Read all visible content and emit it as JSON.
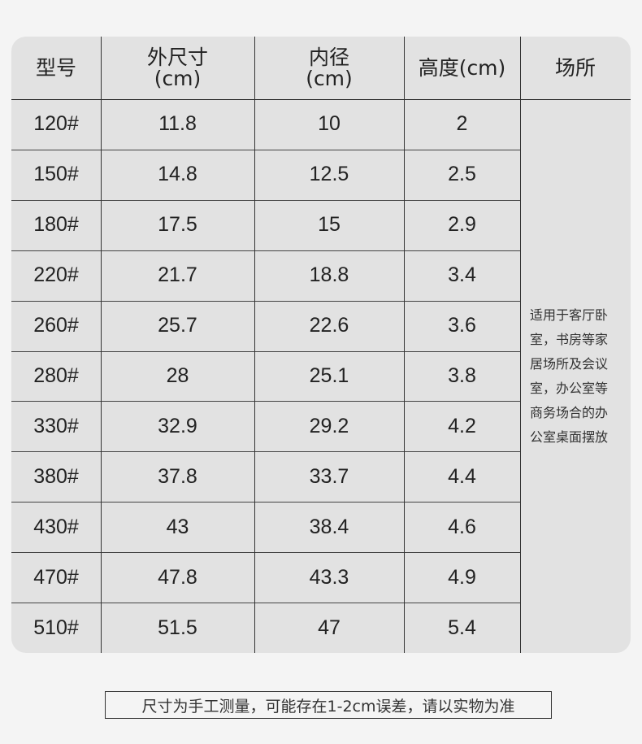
{
  "table": {
    "header": [
      [
        "型号"
      ],
      [
        "外尺寸",
        "(cm)"
      ],
      [
        "内径",
        "(cm)"
      ],
      [
        "高度(cm)"
      ],
      [
        "场所"
      ]
    ],
    "rows": [
      [
        "120#",
        "11.8",
        "10",
        "2"
      ],
      [
        "150#",
        "14.8",
        "12.5",
        "2.5"
      ],
      [
        "180#",
        "17.5",
        "15",
        "2.9"
      ],
      [
        "220#",
        "21.7",
        "18.8",
        "3.4"
      ],
      [
        "260#",
        "25.7",
        "22.6",
        "3.6"
      ],
      [
        "280#",
        "28",
        "25.1",
        "3.8"
      ],
      [
        "330#",
        "32.9",
        "29.2",
        "4.2"
      ],
      [
        "380#",
        "37.8",
        "33.7",
        "4.4"
      ],
      [
        "430#",
        "43",
        "38.4",
        "4.6"
      ],
      [
        "470#",
        "47.8",
        "43.3",
        "4.9"
      ],
      [
        "510#",
        "51.5",
        "47",
        "5.4"
      ]
    ],
    "place_note": [
      "适用于客厅卧",
      "室，书房等家",
      "居场所及会议",
      "室，办公室等",
      "商务场合的办",
      "公室桌面摆放"
    ]
  },
  "footer_note": "尺寸为手工测量，可能存在1-2cm误差，请以实物为准"
}
